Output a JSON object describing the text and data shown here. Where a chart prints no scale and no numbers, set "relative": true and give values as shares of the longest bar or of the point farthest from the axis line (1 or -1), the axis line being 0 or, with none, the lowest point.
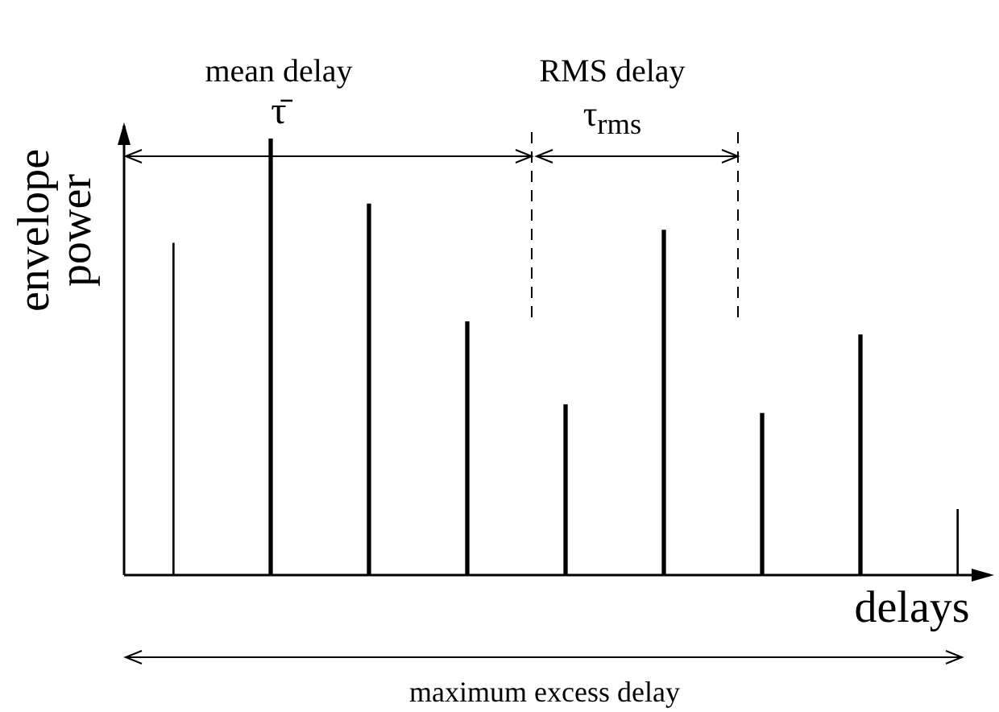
{
  "chart_data": {
    "type": "bar",
    "relative": true,
    "tick_labels": false,
    "categories": [
      null,
      null,
      null,
      null,
      null,
      null,
      null,
      null,
      null
    ],
    "values": [
      0.76,
      1,
      0.85,
      0.58,
      0.39,
      0.79,
      0.37,
      0.55,
      0.15
    ],
    "color": "#000000",
    "xlabel": "delays",
    "ylabel": "envelope power",
    "annotations": [
      "mean delay",
      "τ̄",
      "RMS delay",
      "τ$_{rms}$",
      "maximum excess delay"
    ]
  }
}
